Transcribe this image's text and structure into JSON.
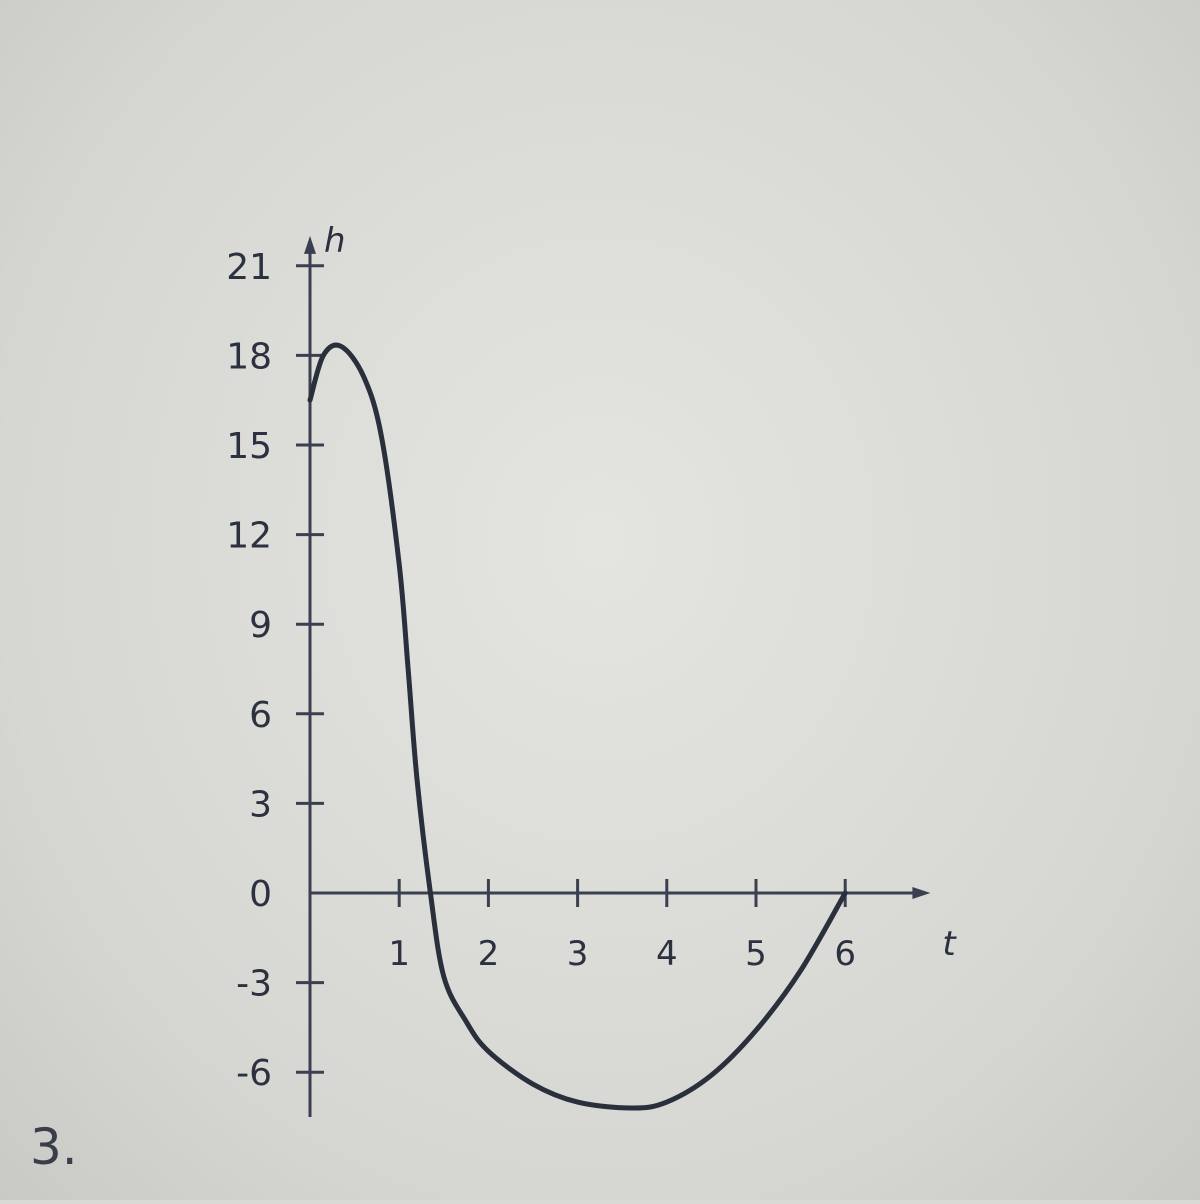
{
  "problem_number": "3.",
  "chart_data": {
    "type": "line",
    "title": "",
    "xlabel": "t",
    "ylabel": "h",
    "xlim": [
      0,
      7
    ],
    "ylim": [
      -7.5,
      22
    ],
    "x_ticks": [
      1,
      2,
      3,
      4,
      5,
      6
    ],
    "x_tick_labels": [
      "1",
      "2",
      "3",
      "4",
      "5",
      "6"
    ],
    "y_ticks": [
      -6,
      -3,
      0,
      3,
      6,
      9,
      12,
      15,
      18,
      21
    ],
    "y_tick_labels": [
      "-6",
      "-3",
      "0",
      "3",
      "6",
      "9",
      "12",
      "15",
      "18",
      "21"
    ],
    "grid": false,
    "line_color": "#2a2f3c",
    "x": [
      0,
      0.15,
      0.35,
      0.6,
      0.8,
      1.0,
      1.1,
      1.2,
      1.35,
      1.5,
      1.75,
      2.0,
      2.5,
      3.0,
      3.6,
      4.0,
      4.5,
      5.0,
      5.5,
      6.0
    ],
    "y": [
      16.5,
      18.0,
      18.3,
      17.3,
      15.3,
      11.0,
      7.5,
      3.8,
      0,
      -2.8,
      -4.3,
      -5.3,
      -6.4,
      -7.0,
      -7.2,
      -7.0,
      -6.1,
      -4.6,
      -2.6,
      0
    ]
  }
}
